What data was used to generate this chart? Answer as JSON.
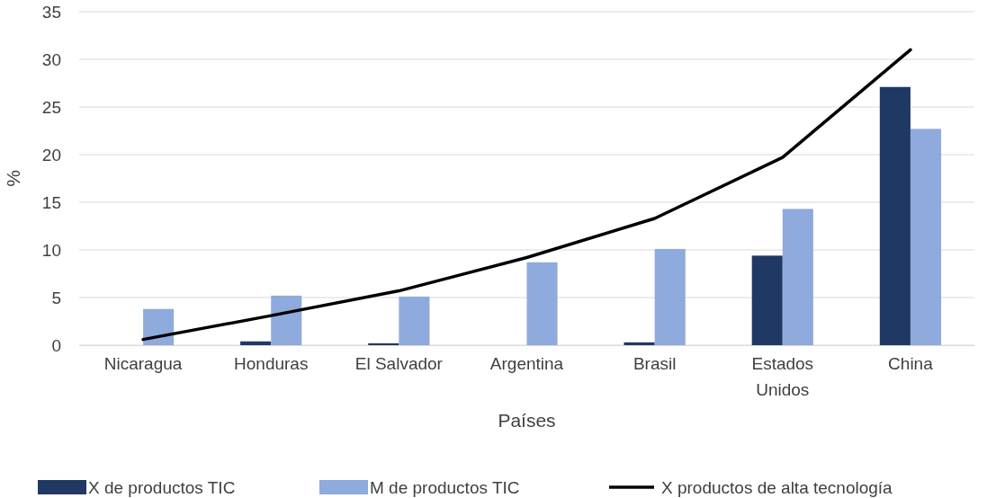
{
  "chart_data": {
    "type": "bar",
    "xlabel": "Países",
    "ylabel": "%",
    "categories": [
      "Nicaragua",
      "Honduras",
      "El Salvador",
      "Argentina",
      "Brasil",
      "Estados Unidos",
      "China"
    ],
    "series": [
      {
        "name": "X de productos TIC",
        "color": "#203864",
        "values": [
          0,
          0.4,
          0.2,
          0,
          0.3,
          9.4,
          27.1
        ]
      },
      {
        "name": "M de productos TIC",
        "color": "#8faadc",
        "values": [
          3.8,
          5.2,
          5.1,
          8.7,
          10.1,
          14.3,
          22.7
        ]
      },
      {
        "name": "X  productos de alta tecnología",
        "type": "line",
        "color": "#000000",
        "values": [
          0.6,
          3.1,
          5.7,
          9.2,
          13.3,
          19.7,
          31
        ]
      }
    ],
    "ylim": [
      0,
      35
    ],
    "yticks": [
      0,
      5,
      10,
      15,
      20,
      25,
      30,
      35
    ],
    "grid": "y",
    "legend": "bottom"
  }
}
